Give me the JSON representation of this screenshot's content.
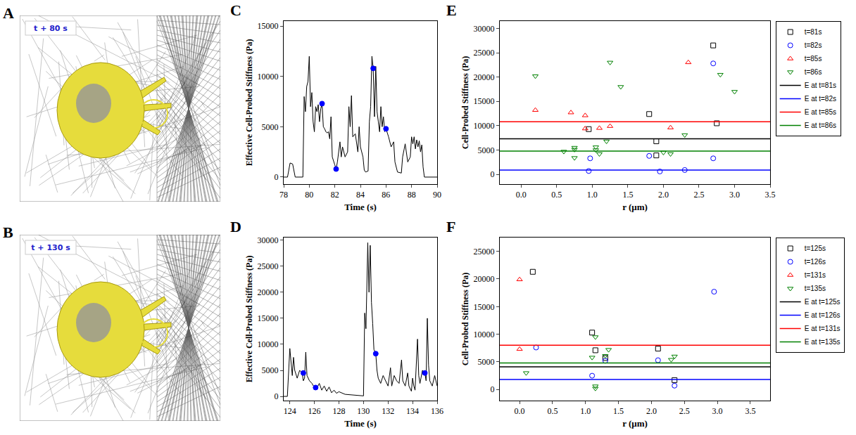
{
  "images": [
    {
      "panel": "A",
      "label": "t + 80 s"
    },
    {
      "panel": "B",
      "label": "t + 130 s"
    }
  ],
  "chart_data": [
    {
      "panel": "C",
      "type": "line",
      "x_label": "Time (s)",
      "y_label": "Effective Cell-Probed Stiffness (Pa)",
      "xlim": [
        78,
        90
      ],
      "xticks": [
        78,
        80,
        82,
        84,
        86,
        88,
        90
      ],
      "ylim": [
        -700,
        15500
      ],
      "yticks": [
        0,
        5000,
        10000,
        15000
      ],
      "grid": false,
      "series": [
        {
          "type": "line",
          "color": "black",
          "x": [
            78.0,
            78.3,
            78.5,
            78.7,
            78.9,
            79.5,
            79.6,
            79.7,
            79.8,
            79.9,
            80.0,
            80.1,
            80.2,
            80.3,
            80.4,
            80.5,
            80.6,
            80.7,
            80.8,
            80.9,
            81.0,
            81.1,
            81.2,
            81.3,
            81.4,
            81.5,
            81.6,
            81.7,
            81.8,
            81.9,
            82.0,
            82.1,
            82.2,
            82.4,
            82.5,
            82.6,
            82.8,
            83.0,
            83.1,
            83.2,
            83.3,
            83.4,
            83.6,
            83.8,
            83.9,
            84.0,
            84.2,
            84.3,
            84.4,
            84.6,
            84.7,
            84.8,
            84.9,
            85.0,
            85.1,
            85.2,
            85.3,
            85.4,
            85.5,
            85.6,
            85.7,
            85.8,
            85.9,
            86.0,
            86.2,
            86.4,
            86.6,
            86.7,
            86.9,
            87.2,
            87.3,
            87.5,
            87.6,
            87.7,
            87.9,
            88.0,
            88.1,
            88.2,
            88.3,
            88.4,
            88.5,
            88.6,
            88.7,
            88.8,
            88.9,
            89.0,
            90.0
          ],
          "values": [
            0,
            0,
            1400,
            1300,
            0,
            0,
            8000,
            6500,
            9000,
            9500,
            12000,
            7000,
            8400,
            5500,
            4500,
            7000,
            6500,
            7200,
            5500,
            6800,
            7300,
            5000,
            4800,
            4500,
            4400,
            4500,
            3800,
            6000,
            2000,
            1500,
            1200,
            800,
            1500,
            3500,
            2000,
            3000,
            2000,
            2500,
            7000,
            5000,
            8100,
            4000,
            4300,
            2500,
            5000,
            3000,
            2000,
            700,
            500,
            600,
            5500,
            7000,
            12000,
            10800,
            6000,
            11000,
            6500,
            5500,
            4500,
            7000,
            5000,
            6000,
            4500,
            4800,
            4000,
            3000,
            3500,
            1500,
            500,
            400,
            2000,
            3300,
            2500,
            1500,
            2000,
            4000,
            3300,
            4000,
            2800,
            3700,
            3000,
            3600,
            2500,
            3200,
            1000,
            0,
            0
          ]
        },
        {
          "type": "scatter",
          "color": "blue",
          "marker": "circle",
          "x": [
            81.0,
            82.1,
            85.0,
            86.0
          ],
          "values": [
            7300,
            800,
            10800,
            4800
          ]
        }
      ]
    },
    {
      "panel": "E",
      "type": "scatter",
      "x_label": "r (μm)",
      "y_label": "Cell-Probed Stiffness (Pa)",
      "xlim": [
        -0.3,
        3.5
      ],
      "xticks": [
        {
          "value": 0,
          "label": "0.0"
        },
        {
          "value": 0.5,
          "label": "0.5"
        },
        {
          "value": 1,
          "label": "1.0"
        },
        {
          "value": 1.5,
          "label": "1.5"
        },
        {
          "value": 2,
          "label": "2.0"
        },
        {
          "value": 2.5,
          "label": "2.5"
        },
        {
          "value": 3,
          "label": "3.0"
        },
        {
          "value": 3.5,
          "label": "3.5"
        }
      ],
      "ylim": [
        -2000,
        31500
      ],
      "yticks": [
        0,
        5000,
        10000,
        15000,
        20000,
        25000,
        30000
      ],
      "grid": false,
      "legend": "right",
      "series": [
        {
          "name": "t=81s",
          "type": "scatter",
          "color": "black",
          "marker": "square-open",
          "x": [
            0.95,
            1.8,
            1.9,
            1.9,
            2.7,
            2.75
          ],
          "values": [
            9300,
            12400,
            6800,
            3900,
            26500,
            10500
          ]
        },
        {
          "name": "t=82s",
          "type": "scatter",
          "color": "blue",
          "marker": "circle-open",
          "x": [
            0.95,
            0.97,
            1.8,
            1.95,
            2.3,
            2.7,
            2.7
          ],
          "values": [
            700,
            3300,
            3800,
            600,
            900,
            22800,
            3300
          ]
        },
        {
          "name": "t=85s",
          "type": "scatter",
          "color": "red",
          "marker": "triangle-up-open",
          "x": [
            0.2,
            0.7,
            0.9,
            0.9,
            1.1,
            1.25,
            2.1,
            2.35
          ],
          "values": [
            13200,
            12700,
            12100,
            9400,
            9500,
            9900,
            9600,
            23000
          ]
        },
        {
          "name": "t=86s",
          "type": "scatter",
          "color": "green",
          "marker": "triangle-down-open",
          "x": [
            0.2,
            0.6,
            0.75,
            0.75,
            0.75,
            1.05,
            1.05,
            1.1,
            1.2,
            1.25,
            1.4,
            2.0,
            2.1,
            2.3,
            2.8,
            3.0
          ],
          "values": [
            20200,
            4700,
            3400,
            5100,
            5500,
            5000,
            5600,
            4200,
            6800,
            23000,
            18000,
            4500,
            4200,
            8100,
            20500,
            17000
          ]
        },
        {
          "name": "E at t=81s",
          "type": "hline",
          "color": "black",
          "value": 7300
        },
        {
          "name": "E at t=82s",
          "type": "hline",
          "color": "blue",
          "value": 900
        },
        {
          "name": "E at t=85s",
          "type": "hline",
          "color": "red",
          "value": 10800
        },
        {
          "name": "E at t=86s",
          "type": "hline",
          "color": "green",
          "value": 4800
        }
      ]
    },
    {
      "panel": "D",
      "type": "line",
      "x_label": "Time (s)",
      "y_label": "Effective Cell-Probed Stiffness (Pa)",
      "xlim": [
        123.5,
        136
      ],
      "xticks": [
        124,
        126,
        128,
        130,
        132,
        134,
        136
      ],
      "ylim": [
        -800,
        30500
      ],
      "yticks": [
        0,
        5000,
        10000,
        15000,
        20000,
        25000,
        30000
      ],
      "grid": false,
      "series": [
        {
          "type": "line",
          "color": "black",
          "x": [
            123.5,
            123.8,
            124.0,
            124.1,
            124.2,
            124.3,
            124.4,
            124.6,
            124.8,
            125.0,
            125.1,
            125.2,
            125.3,
            125.4,
            125.6,
            125.8,
            126.0,
            126.2,
            126.4,
            126.6,
            126.8,
            127.0,
            127.2,
            127.4,
            127.6,
            127.8,
            128.0,
            128.5,
            129.0,
            129.5,
            130.0,
            130.1,
            130.2,
            130.35,
            130.45,
            130.55,
            130.65,
            130.75,
            130.85,
            131.0,
            131.1,
            131.2,
            131.4,
            131.6,
            131.8,
            132.0,
            132.2,
            132.3,
            132.5,
            132.7,
            132.9,
            133.0,
            133.1,
            133.2,
            133.4,
            133.6,
            133.7,
            133.9,
            134.0,
            134.1,
            134.2,
            134.4,
            134.5,
            134.6,
            134.8,
            135.0,
            135.1,
            135.2,
            135.3,
            135.4,
            135.6,
            135.8,
            136.0
          ],
          "values": [
            0,
            0,
            9200,
            6000,
            4000,
            7500,
            5000,
            3500,
            5000,
            4500,
            3000,
            3500,
            8500,
            4000,
            3000,
            2500,
            1700,
            1500,
            2500,
            1200,
            2000,
            1000,
            1800,
            700,
            1200,
            600,
            900,
            400,
            300,
            200,
            100,
            16000,
            13000,
            29500,
            20000,
            29000,
            18000,
            14000,
            9000,
            8200,
            5000,
            3500,
            2500,
            4000,
            3000,
            2000,
            5500,
            2000,
            4000,
            3000,
            2500,
            4500,
            7000,
            3000,
            2000,
            4500,
            2000,
            1000,
            3500,
            2000,
            1200,
            11000,
            4000,
            2500,
            5000,
            4500,
            3000,
            15000,
            6000,
            3000,
            2000,
            4000,
            2000
          ]
        },
        {
          "type": "scatter",
          "color": "blue",
          "marker": "circle",
          "x": [
            125.1,
            126.1,
            131.0,
            135.0
          ],
          "values": [
            4500,
            1700,
            8200,
            4500
          ]
        }
      ]
    },
    {
      "panel": "F",
      "type": "scatter",
      "x_label": "r (μm)",
      "y_label": "Cell-Probed Stiffness (Pa)",
      "xlim": [
        -0.3,
        3.8
      ],
      "xticks": [
        {
          "value": 0,
          "label": "0.0"
        },
        {
          "value": 0.5,
          "label": "0.5"
        },
        {
          "value": 1,
          "label": "1.0"
        },
        {
          "value": 1.5,
          "label": "1.5"
        },
        {
          "value": 2,
          "label": "2.0"
        },
        {
          "value": 2.5,
          "label": "2.5"
        },
        {
          "value": 3,
          "label": "3.0"
        },
        {
          "value": 3.5,
          "label": "3.5"
        }
      ],
      "ylim": [
        -2000,
        27500
      ],
      "yticks": [
        0,
        5000,
        10000,
        15000,
        20000,
        25000
      ],
      "grid": false,
      "legend": "right",
      "series": [
        {
          "name": "t=125s",
          "type": "scatter",
          "color": "black",
          "marker": "square-open",
          "x": [
            0.2,
            1.1,
            1.15,
            1.3,
            2.1,
            2.35
          ],
          "values": [
            21300,
            10300,
            7100,
            5700,
            7400,
            1700
          ]
        },
        {
          "name": "t=126s",
          "type": "scatter",
          "color": "blue",
          "marker": "circle-open",
          "x": [
            0.25,
            1.1,
            1.3,
            2.1,
            2.35,
            2.95
          ],
          "values": [
            7600,
            2500,
            5200,
            5300,
            700,
            17700
          ]
        },
        {
          "name": "t=131s",
          "type": "scatter",
          "color": "red",
          "marker": "triangle-up-open",
          "x": [
            0.0,
            0.0
          ],
          "values": [
            19900,
            7300
          ]
        },
        {
          "name": "t=135s",
          "type": "scatter",
          "color": "green",
          "marker": "triangle-down-open",
          "x": [
            0.1,
            1.1,
            1.15,
            1.15,
            1.15,
            1.3,
            1.35,
            2.3,
            2.35
          ],
          "values": [
            3000,
            5800,
            9500,
            600,
            200,
            6100,
            7200,
            5400,
            6000
          ]
        },
        {
          "name": "E at t=125s",
          "type": "hline",
          "color": "black",
          "value": 4100
        },
        {
          "name": "E at t=126s",
          "type": "hline",
          "color": "blue",
          "value": 1800
        },
        {
          "name": "E at t=131s",
          "type": "hline",
          "color": "red",
          "value": 8000
        },
        {
          "name": "E at t=135s",
          "type": "hline",
          "color": "green",
          "value": 4800
        }
      ]
    }
  ]
}
